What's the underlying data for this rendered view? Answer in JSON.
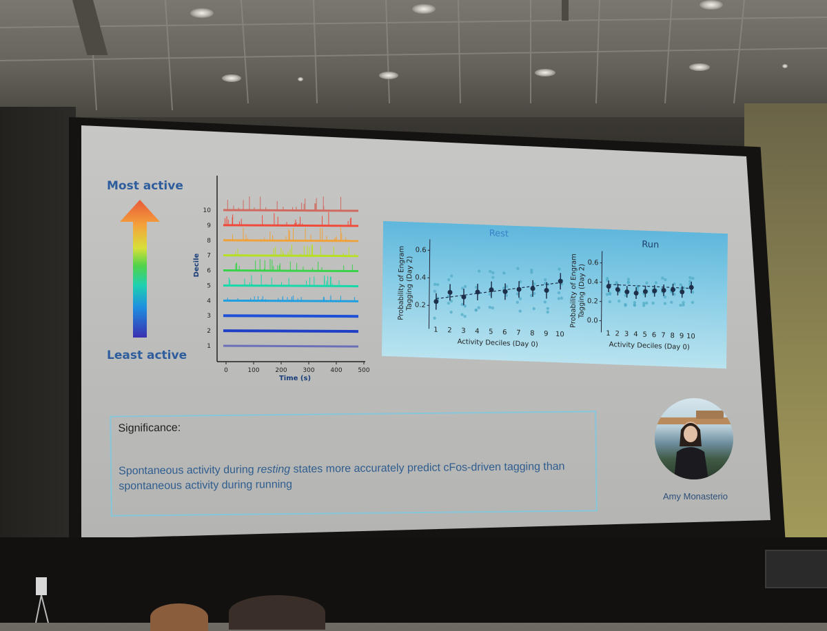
{
  "slide": {
    "most_active_label": "Most active",
    "least_active_label": "Least active",
    "trace_plot": {
      "ylabel": "Decile",
      "xlabel": "Time (s)",
      "y_ticks": [
        "1",
        "2",
        "3",
        "4",
        "5",
        "6",
        "7",
        "8",
        "9",
        "10"
      ],
      "x_ticks": [
        "0",
        "100",
        "200",
        "300",
        "400",
        "500"
      ],
      "trace_colors": [
        "#6b6fb8",
        "#1f3fc6",
        "#2050d8",
        "#1f9fe0",
        "#16d8a8",
        "#3ad24a",
        "#b7e022",
        "#f0a23a",
        "#ef4a3a",
        "#d06a60"
      ]
    },
    "scatter_plots": [
      {
        "title": "Rest",
        "ylabel_line1": "Probability of Engram",
        "ylabel_line2": "Tagging (Day 2)",
        "xlabel": "Activity Deciles (Day 0)",
        "y_ticks": [
          "0.2",
          "0.4",
          "0.6"
        ],
        "x_ticks": [
          "1",
          "2",
          "3",
          "4",
          "5",
          "6",
          "7",
          "8",
          "9",
          "10"
        ],
        "means": [
          0.23,
          0.3,
          0.27,
          0.31,
          0.33,
          0.32,
          0.34,
          0.35,
          0.34,
          0.41
        ]
      },
      {
        "title": "Run",
        "ylabel_line1": "Probability of Engram",
        "ylabel_line2": "Tagging (Day 2)",
        "xlabel": "Activity Deciles (Day 0)",
        "y_ticks": [
          "0.0",
          "0.2",
          "0.4",
          "0.6"
        ],
        "x_ticks": [
          "1",
          "2",
          "3",
          "4",
          "5",
          "6",
          "7",
          "8",
          "9",
          "10"
        ],
        "means": [
          0.36,
          0.33,
          0.31,
          0.3,
          0.32,
          0.33,
          0.34,
          0.35,
          0.33,
          0.38
        ]
      }
    ],
    "significance": {
      "title": "Significance:",
      "text_part1": "Spontaneous activity during ",
      "text_emphasis": "resting",
      "text_part2": " states more accurately predict cFos-driven tagging than spontaneous activity during running"
    },
    "presenter_name": "Amy Monasterio"
  }
}
